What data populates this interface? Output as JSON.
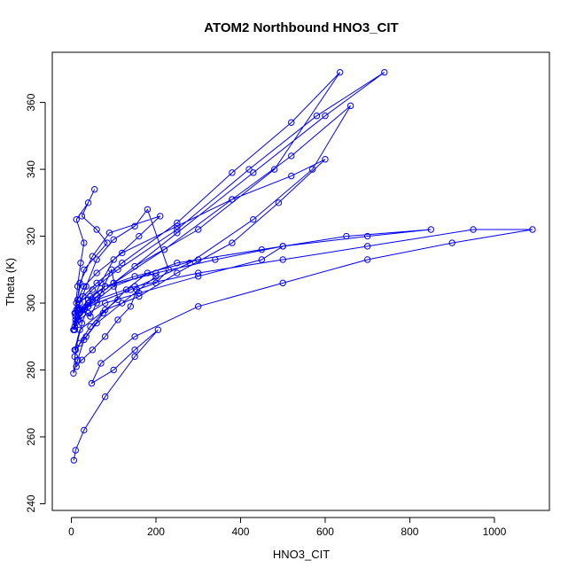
{
  "chart_data": {
    "type": "line",
    "title": "ATOM2 Northbound HNO3_CIT",
    "xlabel": "HNO3_CIT",
    "ylabel": "Theta (K)",
    "xlim": [
      -45,
      1130
    ],
    "ylim": [
      238,
      375
    ],
    "xticks": [
      0,
      200,
      400,
      600,
      800,
      1000
    ],
    "yticks": [
      240,
      260,
      280,
      300,
      320,
      340,
      360
    ],
    "grid": false,
    "legend": "none",
    "style": "line+open-circle markers",
    "series_color": "#0000ff",
    "series": [
      {
        "x": [
          8,
          15,
          22,
          30,
          12,
          40,
          55,
          25,
          60,
          85,
          30,
          12,
          45,
          70,
          95,
          110,
          20,
          8,
          35,
          75,
          130,
          180,
          200,
          120,
          60,
          30,
          15,
          5,
          10,
          25,
          40,
          70,
          100,
          160,
          210,
          90,
          50,
          20,
          10,
          5,
          15,
          35,
          60,
          100,
          150,
          180,
          230,
          200,
          155,
          140,
          110,
          80,
          50,
          25,
          12,
          8,
          20,
          45,
          80,
          160,
          250,
          380,
          490,
          600,
          520,
          380,
          250,
          120,
          60,
          30,
          15,
          25,
          60,
          140,
          280,
          430,
          570,
          660,
          520,
          380,
          220,
          100,
          50,
          20,
          8,
          10,
          30,
          70,
          150,
          300,
          480,
          635,
          520,
          380,
          250,
          120,
          60,
          28,
          12,
          20,
          50,
          110,
          250,
          420,
          580,
          740,
          600,
          430,
          250,
          100,
          40,
          15,
          6,
          10,
          25,
          45,
          80,
          200,
          340,
          500,
          450,
          300,
          160,
          80,
          40,
          18,
          8,
          15,
          40,
          100,
          250,
          450,
          650,
          850,
          700,
          500,
          300,
          150,
          80,
          40,
          20,
          10,
          30,
          60,
          150,
          300,
          500,
          700,
          950,
          1090,
          900,
          700,
          500,
          300,
          150,
          70,
          48,
          100,
          150,
          205,
          150,
          80,
          30,
          10,
          6
        ],
        "y": [
          297,
          305,
          312,
          318,
          325,
          330,
          334,
          326,
          322,
          318,
          310,
          300,
          296,
          303,
          310,
          301,
          292,
          286,
          290,
          297,
          304,
          309,
          308,
          300,
          294,
          289,
          283,
          279,
          286,
          294,
          299,
          306,
          313,
          320,
          326,
          321,
          314,
          306,
          297,
          292,
          298,
          305,
          313,
          319,
          323,
          328,
          310,
          306,
          304,
          299,
          295,
          290,
          286,
          283,
          281,
          284,
          288,
          293,
          298,
          302,
          309,
          318,
          330,
          343,
          338,
          331,
          323,
          315,
          309,
          305,
          301,
          298,
          300,
          304,
          312,
          325,
          340,
          359,
          344,
          331,
          316,
          306,
          301,
          297,
          292,
          294,
          298,
          303,
          311,
          322,
          340,
          369,
          354,
          339,
          324,
          312,
          306,
          302,
          298,
          300,
          304,
          310,
          322,
          340,
          356,
          369,
          356,
          339,
          321,
          306,
          300,
          296,
          292,
          295,
          298,
          302,
          305,
          309,
          313,
          317,
          313,
          308,
          303,
          300,
          297,
          295,
          293,
          295,
          299,
          305,
          312,
          316,
          320,
          322,
          320,
          317,
          313,
          308,
          305,
          301,
          298,
          296,
          298,
          301,
          305,
          309,
          313,
          317,
          322,
          322,
          318,
          313,
          306,
          299,
          290,
          282,
          276,
          280,
          286,
          292,
          284,
          272,
          262,
          256,
          253
        ]
      }
    ]
  }
}
